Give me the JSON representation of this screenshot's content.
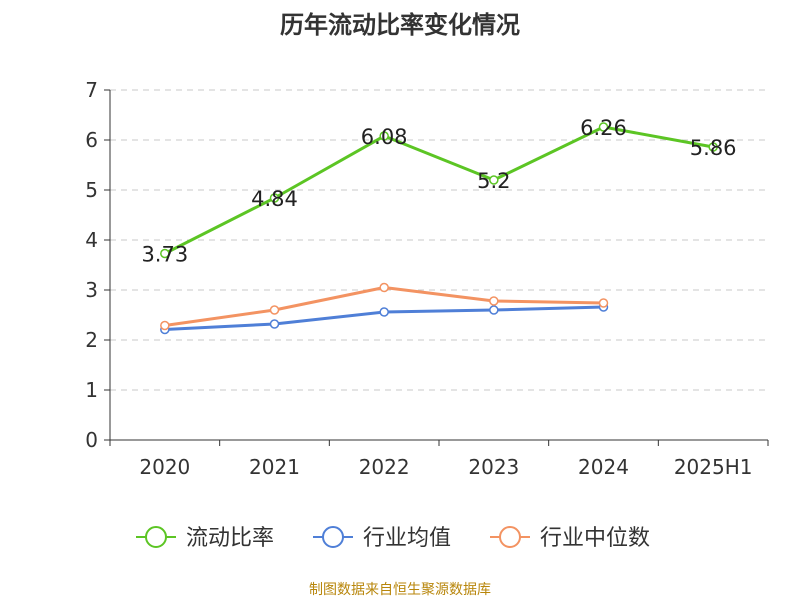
{
  "title": "历年流动比率变化情况",
  "source_note": "制图数据来自恒生聚源数据库",
  "chart_data": {
    "type": "line",
    "title": "历年流动比率变化情况",
    "categories": [
      "2020",
      "2021",
      "2022",
      "2023",
      "2024",
      "2025H1"
    ],
    "ylim": [
      0,
      7
    ],
    "yticks": [
      0,
      1,
      2,
      3,
      4,
      5,
      6,
      7
    ],
    "grid": true,
    "legend_position": "bottom",
    "series": [
      {
        "name": "流动比率",
        "color": "#5cc524",
        "values": [
          3.73,
          4.84,
          6.08,
          5.2,
          6.26,
          5.86
        ],
        "labels": [
          "3.73",
          "4.84",
          "6.08",
          "5.2",
          "6.26",
          "5.86"
        ]
      },
      {
        "name": "行业均值",
        "color": "#4f7fd7",
        "values": [
          2.21,
          2.32,
          2.56,
          2.6,
          2.66,
          null
        ]
      },
      {
        "name": "行业中位数",
        "color": "#f39362",
        "values": [
          2.29,
          2.6,
          3.05,
          2.78,
          2.74,
          null
        ]
      }
    ]
  }
}
